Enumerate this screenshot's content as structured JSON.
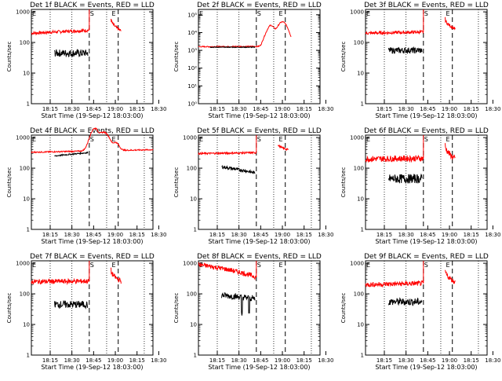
{
  "figure": {
    "xlabel": "Start Time (19-Sep-12 18:03:00)",
    "ylabel": "Counts/sec",
    "x_tick_labels": [
      "18:15",
      "18:30",
      "18:45",
      "19:00",
      "18:15",
      "18:30"
    ],
    "markers": [
      "E",
      "S",
      "E"
    ],
    "colors": {
      "events": "#000000",
      "lld": "#ff0000",
      "axes": "#000000",
      "background": "#ffffff"
    }
  },
  "chart_data": [
    {
      "type": "line",
      "title": "Det 1f BLACK = Events, RED = LLD",
      "ylabel": "Counts/sec",
      "xlabel": "Start Time (19-Sep-12 18:03:00)",
      "y_scale": "log",
      "ylim": [
        1,
        1200
      ],
      "yticks": [
        "1",
        "10",
        "100",
        "1000"
      ],
      "xlim": [
        0,
        84
      ],
      "events": {
        "start": 16,
        "end": 39,
        "level_start": 45,
        "level_end": 45,
        "noise": 0.12
      },
      "lld": {
        "start": 0,
        "end": 40,
        "level_start": 200,
        "level_end": 250,
        "noise": 0.05,
        "post": {
          "start": 55,
          "end": 62,
          "level_start": 600,
          "level_end": 240
        }
      }
    },
    {
      "type": "line",
      "title": "Det 2f BLACK = Events, RED = LLD",
      "ylabel": "Counts/sec",
      "xlabel": "Start Time (19-Sep-12 18:03:00)",
      "y_scale": "log",
      "ylim": [
        1,
        200000
      ],
      "yticks": [
        "10⁰",
        "10¹",
        "10²",
        "10³",
        "10⁴",
        "10⁵"
      ],
      "xlim": [
        0,
        84
      ],
      "events": {
        "start": 8,
        "end": 39,
        "level_start": 1500,
        "level_end": 1500,
        "noise": 0.02
      },
      "lld": {
        "start": 0,
        "end": 64,
        "level_start": 1600,
        "level_end": 1700,
        "noise": 0.03,
        "bumps": [
          [
            46,
            4000,
            2
          ],
          [
            50,
            25000,
            3
          ],
          [
            58,
            40000,
            4
          ]
        ]
      }
    },
    {
      "type": "line",
      "title": "Det 3f BLACK = Events, RED = LLD",
      "ylabel": "Counts/sec",
      "xlabel": "Start Time (19-Sep-12 18:03:00)",
      "y_scale": "log",
      "ylim": [
        1,
        1200
      ],
      "yticks": [
        "1",
        "10",
        "100",
        "1000"
      ],
      "xlim": [
        0,
        84
      ],
      "events": {
        "start": 16,
        "end": 39,
        "level_start": 55,
        "level_end": 55,
        "noise": 0.1
      },
      "lld": {
        "start": 0,
        "end": 40,
        "level_start": 200,
        "level_end": 220,
        "noise": 0.05,
        "post": {
          "start": 55,
          "end": 62,
          "level_start": 600,
          "level_end": 280
        }
      }
    },
    {
      "type": "line",
      "title": "Det 4f BLACK = Events, RED = LLD",
      "ylabel": "Counts/sec",
      "xlabel": "Start Time (19-Sep-12 18:03:00)",
      "y_scale": "log",
      "ylim": [
        1,
        1200
      ],
      "yticks": [
        "1",
        "10",
        "100",
        "1000"
      ],
      "xlim": [
        0,
        84
      ],
      "events": {
        "start": 16,
        "end": 39,
        "level_start": 250,
        "level_end": 320,
        "noise": 0.02
      },
      "lld": {
        "start": 0,
        "end": 84,
        "level_start": 330,
        "level_end": 400,
        "noise": 0.02,
        "bumps": [
          [
            44,
            2000,
            4
          ],
          [
            50,
            1500,
            5
          ],
          [
            58,
            700,
            3
          ]
        ]
      }
    },
    {
      "type": "line",
      "title": "Det 5f BLACK = Events, RED = LLD",
      "ylabel": "Counts/sec",
      "xlabel": "Start Time (19-Sep-12 18:03:00)",
      "y_scale": "log",
      "ylim": [
        1,
        1200
      ],
      "yticks": [
        "1",
        "10",
        "100",
        "1000"
      ],
      "xlim": [
        0,
        84
      ],
      "events": {
        "start": 16,
        "end": 39,
        "level_start": 110,
        "level_end": 70,
        "noise": 0.05
      },
      "lld": {
        "start": 0,
        "end": 40,
        "level_start": 300,
        "level_end": 320,
        "noise": 0.03,
        "post": {
          "start": 55,
          "end": 62,
          "level_start": 600,
          "level_end": 400
        }
      }
    },
    {
      "type": "line",
      "title": "Det 6f BLACK = Events, RED = LLD",
      "ylabel": "Counts/sec",
      "xlabel": "Start Time (19-Sep-12 18:03:00)",
      "y_scale": "log",
      "ylim": [
        1,
        1200
      ],
      "yticks": [
        "1",
        "10",
        "100",
        "1000"
      ],
      "xlim": [
        0,
        84
      ],
      "events": {
        "start": 16,
        "end": 39,
        "level_start": 45,
        "level_end": 45,
        "noise": 0.15
      },
      "lld": {
        "start": 0,
        "end": 40,
        "level_start": 200,
        "level_end": 210,
        "noise": 0.1,
        "post": {
          "start": 55,
          "end": 62,
          "level_start": 600,
          "level_end": 200
        }
      }
    },
    {
      "type": "line",
      "title": "Det 7f BLACK = Events, RED = LLD",
      "ylabel": "Counts/sec",
      "xlabel": "Start Time (19-Sep-12 18:03:00)",
      "y_scale": "log",
      "ylim": [
        1,
        1200
      ],
      "yticks": [
        "1",
        "10",
        "100",
        "1000"
      ],
      "xlim": [
        0,
        84
      ],
      "events": {
        "start": 16,
        "end": 39,
        "level_start": 45,
        "level_end": 45,
        "noise": 0.12
      },
      "lld": {
        "start": 0,
        "end": 40,
        "level_start": 250,
        "level_end": 260,
        "noise": 0.08,
        "post": {
          "start": 55,
          "end": 62,
          "level_start": 600,
          "level_end": 260
        }
      }
    },
    {
      "type": "line",
      "title": "Det 8f BLACK = Events, RED = LLD",
      "ylabel": "Counts/sec",
      "xlabel": "Start Time (19-Sep-12 18:03:00)",
      "y_scale": "log",
      "ylim": [
        1,
        1200
      ],
      "yticks": [
        "1",
        "10",
        "100",
        "1000"
      ],
      "xlim": [
        0,
        84
      ],
      "events": {
        "start": 16,
        "end": 39,
        "level_start": 90,
        "level_end": 70,
        "noise": 0.1,
        "dips": [
          [
            30,
            20
          ],
          [
            35,
            25
          ]
        ]
      },
      "lld": {
        "start": 0,
        "end": 40,
        "level_start": 900,
        "level_end": 350,
        "noise": 0.08
      }
    },
    {
      "type": "line",
      "title": "Det 9f BLACK = Events, RED = LLD",
      "ylabel": "Counts/sec",
      "xlabel": "Start Time (19-Sep-12 18:03:00)",
      "y_scale": "log",
      "ylim": [
        1,
        1200
      ],
      "yticks": [
        "1",
        "10",
        "100",
        "1000"
      ],
      "xlim": [
        0,
        84
      ],
      "events": {
        "start": 16,
        "end": 39,
        "level_start": 55,
        "level_end": 55,
        "noise": 0.12
      },
      "lld": {
        "start": 0,
        "end": 40,
        "level_start": 200,
        "level_end": 220,
        "noise": 0.08,
        "post": {
          "start": 55,
          "end": 62,
          "level_start": 600,
          "level_end": 240
        }
      }
    }
  ]
}
